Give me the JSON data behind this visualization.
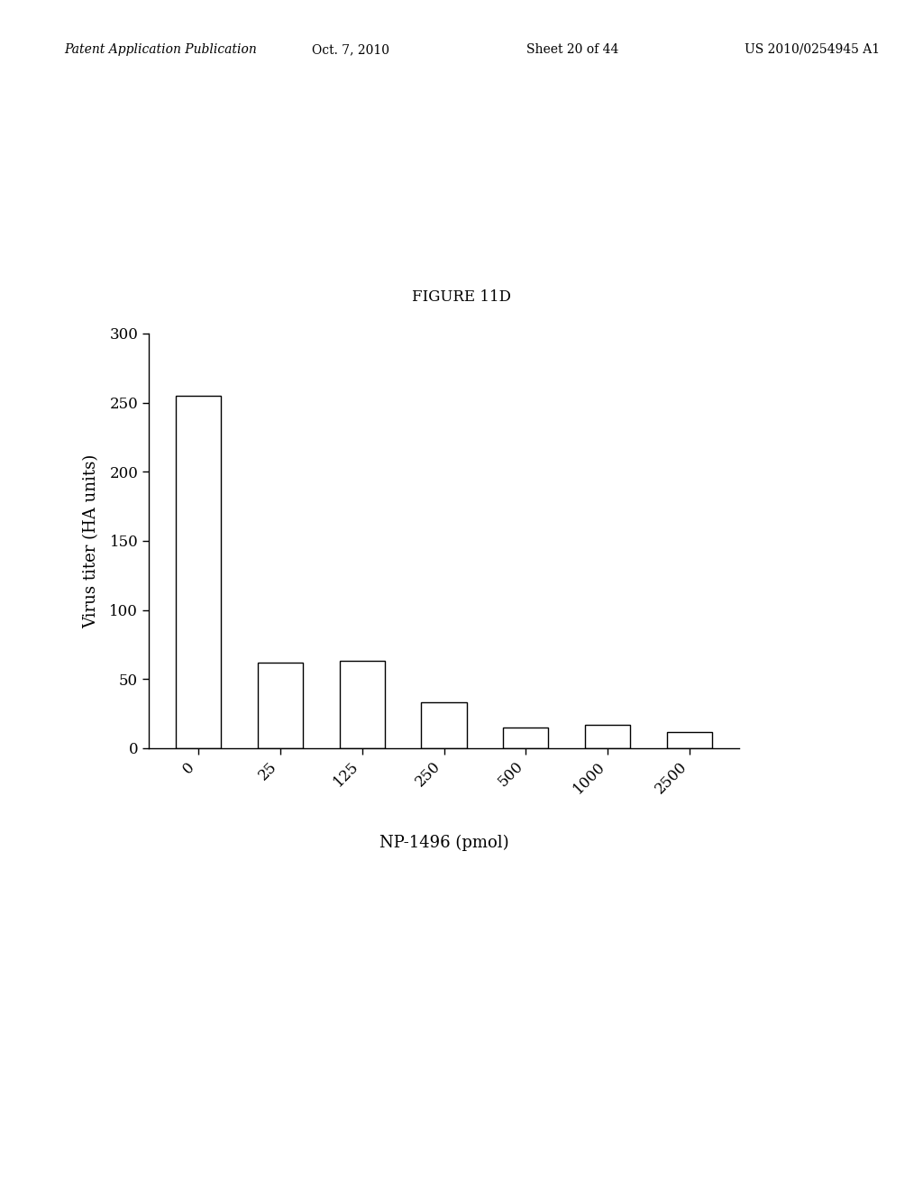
{
  "categories": [
    "0",
    "25",
    "125",
    "250",
    "500",
    "1000",
    "2500"
  ],
  "values": [
    255,
    62,
    63,
    33,
    15,
    17,
    12
  ],
  "bar_color": "#ffffff",
  "bar_edgecolor": "#000000",
  "title": "FIGURE 11D",
  "xlabel": "NP-1496 (pmol)",
  "ylabel": "Virus titer (HA units)",
  "ylim": [
    0,
    300
  ],
  "yticks": [
    0,
    50,
    100,
    150,
    200,
    250,
    300
  ],
  "title_fontsize": 12,
  "label_fontsize": 13,
  "tick_fontsize": 12,
  "bar_width": 0.55,
  "background_color": "#ffffff",
  "header_left": "Patent Application Publication",
  "header_center": "Oct. 7, 2010",
  "header_right1": "Sheet 20 of 44",
  "header_right2": "US 2010/0254945 A1",
  "header_fontsize": 10
}
